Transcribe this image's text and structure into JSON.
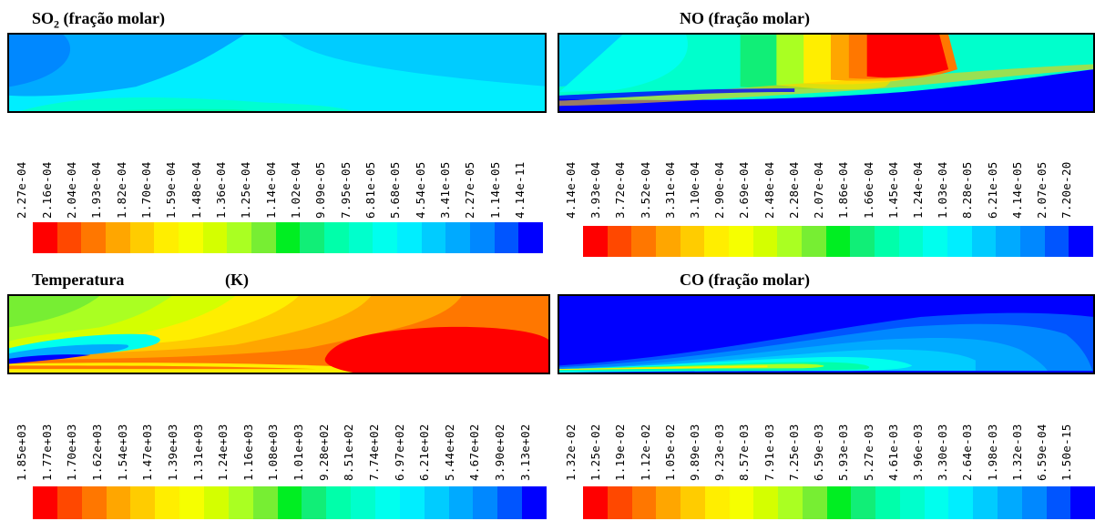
{
  "colormap": [
    "#ff0000",
    "#ff4800",
    "#ff7700",
    "#ffa600",
    "#ffcc00",
    "#ffee00",
    "#f6ff00",
    "#d4ff00",
    "#aaff22",
    "#77ee33",
    "#00ee22",
    "#11ee77",
    "#00ffaa",
    "#00ffcc",
    "#00ffee",
    "#00eeff",
    "#00ccff",
    "#00aaff",
    "#0088ff",
    "#0055ff",
    "#0000ff"
  ],
  "panels": [
    {
      "title": "SO",
      "title_sub": "2",
      "title_rest": " (fração molar)",
      "labels": [
        "2.27e-04",
        "2.16e-04",
        "2.04e-04",
        "1.93e-04",
        "1.82e-04",
        "1.70e-04",
        "1.59e-04",
        "1.48e-04",
        "1.36e-04",
        "1.25e-04",
        "1.14e-04",
        "1.02e-04",
        "9.09e-05",
        "7.95e-05",
        "6.81e-05",
        "5.68e-05",
        "4.54e-05",
        "3.41e-05",
        "2.27e-05",
        "1.14e-05",
        "4.14e-11"
      ]
    },
    {
      "title": "NO (fração molar)",
      "labels": [
        "4.14e-04",
        "3.93e-04",
        "3.72e-04",
        "3.52e-04",
        "3.31e-04",
        "3.10e-04",
        "2.90e-04",
        "2.69e-04",
        "2.48e-04",
        "2.28e-04",
        "2.07e-04",
        "1.86e-04",
        "1.66e-04",
        "1.45e-04",
        "1.24e-04",
        "1.03e-04",
        "8.28e-05",
        "6.21e-05",
        "4.14e-05",
        "2.07e-05",
        "7.20e-20"
      ]
    },
    {
      "title": "Temperatura",
      "title_unit": "(K)",
      "labels": [
        "1.85e+03",
        "1.77e+03",
        "1.70e+03",
        "1.62e+03",
        "1.54e+03",
        "1.47e+03",
        "1.39e+03",
        "1.31e+03",
        "1.24e+03",
        "1.16e+03",
        "1.08e+03",
        "1.01e+03",
        "9.28e+02",
        "8.51e+02",
        "7.74e+02",
        "6.97e+02",
        "6.21e+02",
        "5.44e+02",
        "4.67e+02",
        "3.90e+02",
        "3.13e+02"
      ]
    },
    {
      "title": "CO (fração molar)",
      "labels": [
        "1.32e-02",
        "1.25e-02",
        "1.19e-02",
        "1.12e-02",
        "1.05e-02",
        "9.89e-03",
        "9.23e-03",
        "8.57e-03",
        "7.91e-03",
        "7.25e-03",
        "6.59e-03",
        "5.93e-03",
        "5.27e-03",
        "4.61e-03",
        "3.96e-03",
        "3.30e-03",
        "2.64e-03",
        "1.98e-03",
        "1.32e-03",
        "6.59e-04",
        "1.50e-15"
      ]
    }
  ]
}
